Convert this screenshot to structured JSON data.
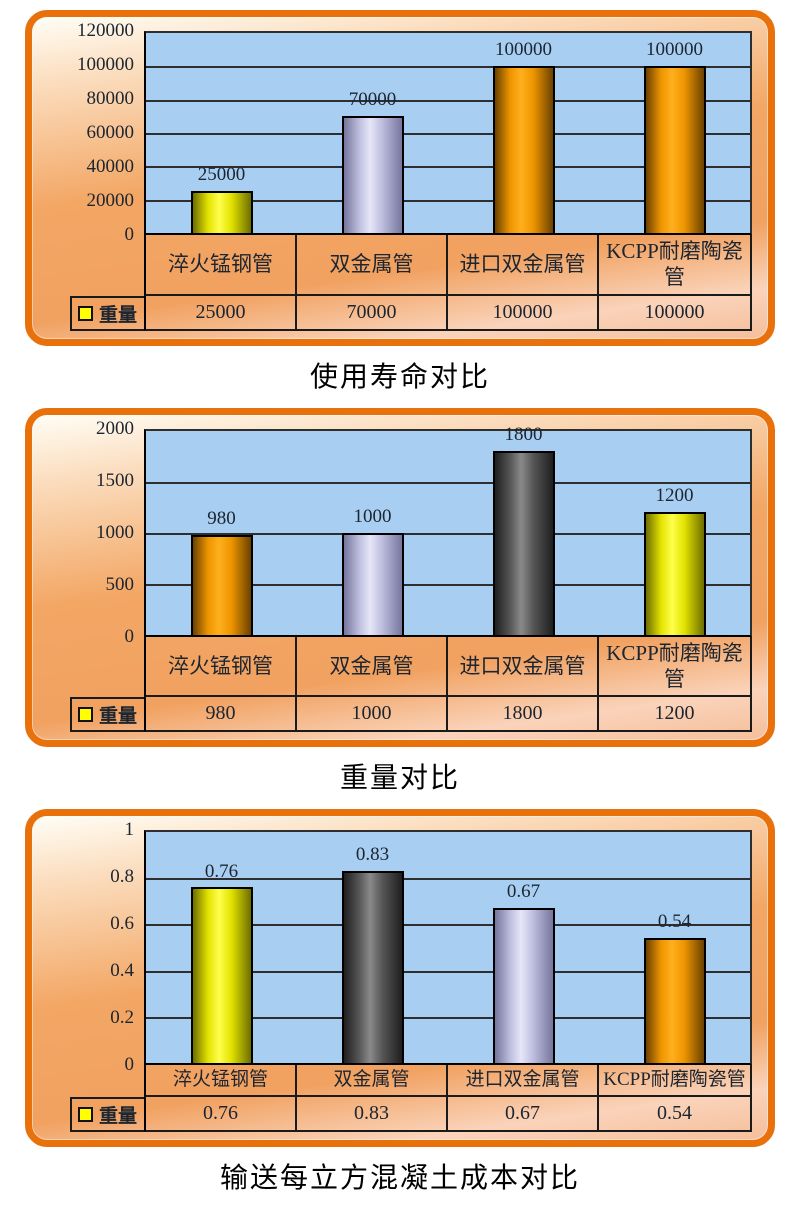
{
  "page": {
    "background": "#FFFFFF"
  },
  "colors": {
    "frame-border": "#E8710B",
    "plot-bg": "#A8CEF2",
    "grid-line": "#2E2E2E",
    "axis-line": "#000000",
    "cell-border": "#1A1A1A",
    "label-text": "#1C2530",
    "title-text": "#000000",
    "bg-1": "#FFFEF6",
    "bg-2": "#FBDDBE",
    "bg-3": "#F3A765",
    "bg-4": "#F1A160",
    "bg-5": "#FAD3BA",
    "bg-6": "#F5BE9A"
  },
  "palette": {
    "yellow": {
      "dark": "#6E6E00",
      "base": "#E3E300",
      "light": "#FFFF4D"
    },
    "orange": {
      "dark": "#6B4100",
      "base": "#EE9500",
      "light": "#FFAF1E"
    },
    "lavender": {
      "dark": "#76769E",
      "base": "#BDBDDE",
      "light": "#E6E6F8"
    },
    "gray": {
      "dark": "#1F1F1F",
      "base": "#565656",
      "light": "#8A8A8A"
    }
  },
  "chart_data": [
    {
      "type": "bar",
      "title": "使用寿命对比",
      "legend": {
        "label": "重量",
        "marker_color": "#FFFF00",
        "position": "table-left"
      },
      "categories": [
        "淬火锰钢管",
        "双金属管",
        "进口双金属管",
        "KCPP耐磨陶瓷管"
      ],
      "series": [
        {
          "name": "重量",
          "values": [
            25000,
            70000,
            100000,
            100000
          ]
        }
      ],
      "value_labels": [
        "25000",
        "70000",
        "100000",
        "100000"
      ],
      "ylim": [
        0,
        120000
      ],
      "ytick_interval": 20000,
      "yticks": [
        "0",
        "20000",
        "40000",
        "60000",
        "80000",
        "100000",
        "120000"
      ],
      "bar_colors": [
        "yellow",
        "lavender",
        "orange",
        "orange"
      ],
      "grid": true
    },
    {
      "type": "bar",
      "title": "重量对比",
      "legend": {
        "label": "重量",
        "marker_color": "#FFFF00",
        "position": "table-left"
      },
      "categories": [
        "淬火锰钢管",
        "双金属管",
        "进口双金属管",
        "KCPP耐磨陶瓷管"
      ],
      "series": [
        {
          "name": "重量",
          "values": [
            980,
            1000,
            1800,
            1200
          ]
        }
      ],
      "value_labels": [
        "980",
        "1000",
        "1800",
        "1200"
      ],
      "ylim": [
        0,
        2000
      ],
      "ytick_interval": 500,
      "yticks": [
        "0",
        "500",
        "1000",
        "1500",
        "2000"
      ],
      "bar_colors": [
        "orange",
        "lavender",
        "gray",
        "yellow"
      ],
      "grid": true
    },
    {
      "type": "bar",
      "title": "输送每立方混凝土成本对比",
      "legend": {
        "label": "重量",
        "marker_color": "#FFFF00",
        "position": "table-left"
      },
      "categories": [
        "淬火锰钢管",
        "双金属管",
        "进口双金属管",
        "KCPP耐磨陶瓷管"
      ],
      "series": [
        {
          "name": "重量",
          "values": [
            0.76,
            0.83,
            0.67,
            0.54
          ]
        }
      ],
      "value_labels": [
        "0.76",
        "0.83",
        "0.67",
        "0.54"
      ],
      "ylim": [
        0,
        1
      ],
      "ytick_interval": 0.2,
      "yticks": [
        "0",
        "0.2",
        "0.4",
        "0.6",
        "0.8",
        "1"
      ],
      "bar_colors": [
        "yellow",
        "gray",
        "lavender",
        "orange"
      ],
      "grid": true
    }
  ]
}
